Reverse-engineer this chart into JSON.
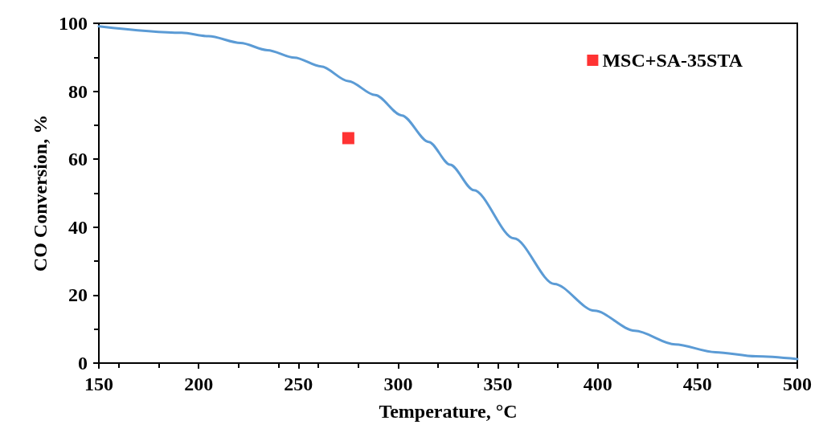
{
  "chart_data": {
    "type": "line",
    "xlabel": "Temperature, °C",
    "ylabel": "CO Conversion, %",
    "xlim": [
      150,
      500
    ],
    "xticks": [
      150,
      200,
      250,
      300,
      350,
      400,
      450,
      500
    ],
    "ylim": [
      0,
      100
    ],
    "yticks": [
      0,
      20,
      40,
      60,
      80,
      100
    ],
    "grid": false,
    "legend": "top right",
    "line_style": "solid",
    "marker": "none",
    "series": [
      {
        "color": "#5b9bd5",
        "x": [
          150,
          191.5,
          205,
          221,
          234.5,
          248,
          261.4,
          275,
          288.4,
          301.8,
          315.3,
          326,
          337.9,
          358,
          378.2,
          398.4,
          418.6,
          438.8,
          459,
          479.2,
          500
        ],
        "values": [
          99.1,
          97.2,
          96.2,
          94.2,
          92.1,
          89.9,
          87.3,
          83.0,
          78.9,
          72.9,
          65.1,
          58.4,
          50.9,
          36.7,
          23.3,
          15.4,
          9.5,
          5.5,
          3.2,
          2.0,
          1.2
        ]
      },
      {
        "type": "scatter",
        "name": "MSC+SA-35STA",
        "color": "#ff0000",
        "marker": "square",
        "x": [
          275
        ],
        "values": [
          66.2
        ]
      }
    ]
  }
}
